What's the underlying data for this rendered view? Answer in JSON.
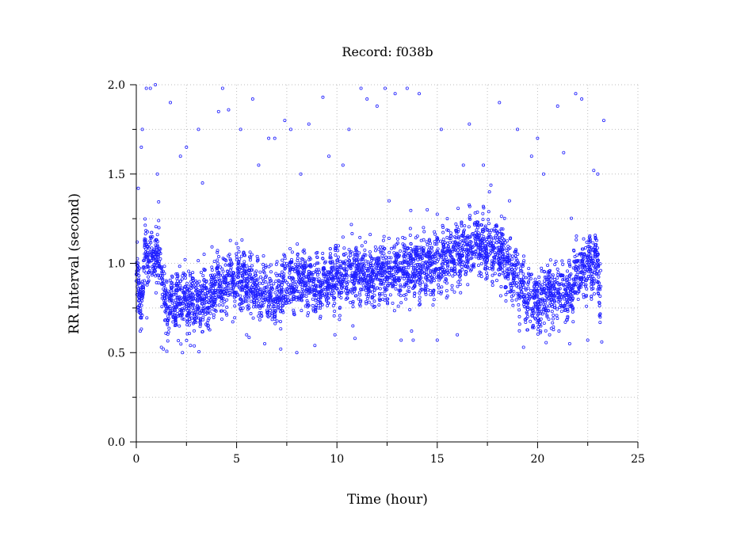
{
  "chart_data": {
    "type": "scatter",
    "title": "Record:  f038b",
    "xlabel": "Time (hour)",
    "ylabel": "RR Interval (second)",
    "xlim": [
      0,
      25
    ],
    "ylim": [
      0,
      2.0
    ],
    "x_ticks": [
      0,
      5,
      10,
      15,
      20,
      25
    ],
    "x_tick_labels": [
      "0",
      "5",
      "10",
      "15",
      "20",
      "25"
    ],
    "y_ticks": [
      0,
      0.5,
      1.0,
      1.5,
      2.0
    ],
    "y_tick_labels": [
      "0.0",
      "0.5",
      "1.0",
      "1.5",
      "2.0"
    ],
    "grid": true,
    "marker": "open-circle",
    "color": "#1f1fff",
    "trend": [
      [
        0.0,
        0.95
      ],
      [
        0.15,
        0.8
      ],
      [
        0.3,
        0.82
      ],
      [
        0.45,
        1.02
      ],
      [
        0.8,
        1.05
      ],
      [
        1.2,
        1.02
      ],
      [
        1.45,
        0.75
      ],
      [
        2.0,
        0.8
      ],
      [
        3.0,
        0.8
      ],
      [
        3.6,
        0.78
      ],
      [
        4.0,
        0.88
      ],
      [
        5.0,
        0.9
      ],
      [
        6.0,
        0.85
      ],
      [
        6.8,
        0.8
      ],
      [
        7.5,
        0.88
      ],
      [
        8.0,
        0.9
      ],
      [
        9.0,
        0.88
      ],
      [
        10.0,
        0.92
      ],
      [
        11.0,
        0.95
      ],
      [
        12.0,
        0.92
      ],
      [
        13.0,
        0.97
      ],
      [
        14.0,
        0.98
      ],
      [
        15.0,
        1.0
      ],
      [
        16.0,
        1.05
      ],
      [
        17.0,
        1.1
      ],
      [
        18.0,
        1.08
      ],
      [
        19.0,
        0.9
      ],
      [
        19.5,
        0.8
      ],
      [
        20.0,
        0.78
      ],
      [
        21.0,
        0.85
      ],
      [
        21.5,
        0.85
      ],
      [
        22.0,
        0.95
      ],
      [
        23.0,
        1.0
      ],
      [
        23.15,
        0.82
      ]
    ],
    "outliers": [
      [
        0.1,
        1.42
      ],
      [
        0.25,
        1.65
      ],
      [
        0.3,
        1.75
      ],
      [
        0.5,
        1.98
      ],
      [
        0.7,
        1.98
      ],
      [
        0.95,
        2.0
      ],
      [
        1.05,
        1.5
      ],
      [
        1.25,
        0.53
      ],
      [
        1.35,
        0.52
      ],
      [
        1.7,
        1.9
      ],
      [
        2.2,
        1.6
      ],
      [
        2.3,
        0.5
      ],
      [
        2.5,
        1.65
      ],
      [
        2.7,
        0.54
      ],
      [
        3.1,
        1.75
      ],
      [
        3.3,
        1.45
      ],
      [
        3.7,
        0.72
      ],
      [
        4.1,
        1.85
      ],
      [
        4.3,
        1.98
      ],
      [
        4.6,
        1.86
      ],
      [
        5.2,
        1.75
      ],
      [
        5.5,
        0.6
      ],
      [
        5.8,
        1.92
      ],
      [
        6.1,
        1.55
      ],
      [
        6.4,
        0.55
      ],
      [
        6.6,
        1.7
      ],
      [
        6.9,
        1.7
      ],
      [
        7.2,
        0.52
      ],
      [
        7.4,
        1.8
      ],
      [
        7.7,
        1.75
      ],
      [
        8.0,
        0.5
      ],
      [
        8.2,
        1.5
      ],
      [
        8.6,
        1.78
      ],
      [
        8.9,
        0.54
      ],
      [
        9.3,
        1.93
      ],
      [
        9.6,
        1.6
      ],
      [
        9.9,
        0.6
      ],
      [
        10.3,
        1.55
      ],
      [
        10.6,
        1.75
      ],
      [
        10.9,
        0.58
      ],
      [
        11.2,
        1.98
      ],
      [
        11.5,
        1.92
      ],
      [
        12.0,
        1.88
      ],
      [
        12.4,
        1.98
      ],
      [
        12.6,
        1.35
      ],
      [
        12.9,
        1.95
      ],
      [
        13.2,
        0.57
      ],
      [
        13.5,
        1.98
      ],
      [
        13.8,
        0.57
      ],
      [
        14.1,
        1.95
      ],
      [
        14.5,
        1.3
      ],
      [
        15.0,
        0.57
      ],
      [
        15.2,
        1.75
      ],
      [
        15.5,
        1.25
      ],
      [
        16.0,
        0.6
      ],
      [
        16.3,
        1.55
      ],
      [
        16.6,
        1.78
      ],
      [
        17.3,
        1.55
      ],
      [
        17.6,
        1.4
      ],
      [
        18.1,
        1.9
      ],
      [
        18.6,
        1.35
      ],
      [
        19.0,
        1.75
      ],
      [
        19.3,
        0.53
      ],
      [
        19.7,
        1.6
      ],
      [
        20.0,
        1.7
      ],
      [
        20.3,
        1.5
      ],
      [
        20.6,
        0.6
      ],
      [
        21.0,
        1.88
      ],
      [
        21.3,
        1.62
      ],
      [
        21.6,
        0.55
      ],
      [
        21.9,
        1.95
      ],
      [
        22.2,
        1.92
      ],
      [
        22.5,
        0.57
      ],
      [
        22.8,
        1.52
      ],
      [
        23.0,
        1.5
      ],
      [
        23.3,
        1.8
      ],
      [
        23.2,
        0.56
      ]
    ]
  }
}
